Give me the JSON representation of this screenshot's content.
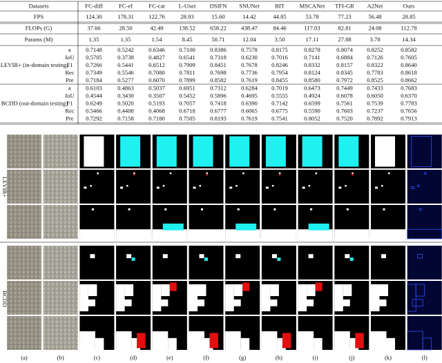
{
  "table": {
    "header": [
      "Datasets",
      "FC-diff",
      "FC-ef",
      "FC-cat",
      "L-Unet",
      "DSIFN",
      "SNUNet",
      "BIT",
      "MSCANet",
      "TFI-GR",
      "A2Net",
      "Ours"
    ],
    "rows": [
      {
        "label": "FPS",
        "values": [
          "124.30",
          "178.31",
          "122.76",
          "28.93",
          "15.60",
          "14.42",
          "44.85",
          "53.78",
          "77.23",
          "56.48",
          "28.85"
        ]
      },
      {
        "label": "FLOPs (G)",
        "values": [
          "37.66",
          "28.50",
          "42.49",
          "138.52",
          "658.22",
          "438.47",
          "84.46",
          "117.03",
          "82.81",
          "24.08",
          "112.78"
        ]
      },
      {
        "label": "Params (M)",
        "values": [
          "1.35",
          "1.35",
          "1.54",
          "8.45",
          "50.71",
          "12.04",
          "3.50",
          "17.11",
          "27.88",
          "3.78",
          "14.34"
        ]
      }
    ],
    "groups": [
      {
        "label": "LEVIR+ (in-domain testing)",
        "rows": [
          {
            "metric": "κ",
            "values": [
              "0.7148",
              "0.5242",
              "0.6346",
              "0.7100",
              "0.8386",
              "0.7578",
              "0.8175",
              "0.8278",
              "0.8074",
              "0.8252",
              "0.8582"
            ],
            "best": 10,
            "second": 4
          },
          {
            "metric": "IoU",
            "values": [
              "0.5705",
              "0.3738",
              "0.4827",
              "0.6541",
              "0.7318",
              "0.6230",
              "0.7016",
              "0.7141",
              "0.6884",
              "0.7126",
              "0.7605"
            ],
            "best": 10,
            "second": 4
          },
          {
            "metric": "F1",
            "values": [
              "0.7266",
              "0.5441",
              "0.6512",
              "0.7909",
              "0.8451",
              "0.7678",
              "0.8246",
              "0.8332",
              "0.8157",
              "0.8322",
              "0.8640"
            ],
            "best": 10,
            "second": 4
          },
          {
            "metric": "Rec",
            "values": [
              "0.7349",
              "0.5546",
              "0.7080",
              "0.7811",
              "0.7698",
              "0.7736",
              "0.7954",
              "0.8124",
              "0.8345",
              "0.7783",
              "0.8618"
            ],
            "best": 10,
            "second": 8
          },
          {
            "metric": "Pre",
            "values": [
              "0.7184",
              "0.5277",
              "0.6070",
              "0.7899",
              "0.8582",
              "0.7619",
              "0.8455",
              "0.8580",
              "0.7972",
              "0.8525",
              "0.8662"
            ],
            "best": 10,
            "second": 4
          }
        ]
      },
      {
        "label": "BCDD (out-domain testing)",
        "rows": [
          {
            "metric": "κ",
            "values": [
              "0.6103",
              "0.4863",
              "0.5037",
              "0.6951",
              "0.7312",
              "0.6284",
              "0.7019",
              "0.6473",
              "0.7449",
              "0.7433",
              "0.7683"
            ],
            "best": 10,
            "second": 8
          },
          {
            "metric": "IoU",
            "values": [
              "0.4544",
              "0.3430",
              "0.3507",
              "0.5452",
              "0.5896",
              "0.4695",
              "0.5555",
              "0.4924",
              "0.6078",
              "0.6050",
              "0.6370"
            ],
            "best": 10,
            "second": 8
          },
          {
            "metric": "F1",
            "values": [
              "0.6249",
              "0.5020",
              "0.5193",
              "0.7057",
              "0.7418",
              "0.6390",
              "0.7142",
              "0.6599",
              "0.7561",
              "0.7539",
              "0.7783"
            ],
            "best": 10,
            "second": 8
          },
          {
            "metric": "Rec",
            "values": [
              "0.5466",
              "0.4408",
              "0.4068",
              "0.6718",
              "0.6777",
              "0.6065",
              "0.6775",
              "0.5590",
              "0.7603",
              "0.7237",
              "0.7656"
            ],
            "best": 10,
            "second": 8
          },
          {
            "metric": "Pre",
            "values": [
              "0.7292",
              "0.7158",
              "0.7180",
              "0.7505",
              "0.8193",
              "0.7619",
              "0.7541",
              "0.8052",
              "0.7520",
              "0.7892",
              "0.7913"
            ],
            "best": 4,
            "second": 7
          }
        ]
      }
    ],
    "colors": {
      "best": "#e8221c",
      "second": "#1ea5e6"
    }
  },
  "figure": {
    "row_groups": [
      "LEVIR+",
      "BCDD"
    ],
    "column_labels": [
      "(a)",
      "(b)",
      "(c)",
      "(d)",
      "(e)",
      "(f)",
      "(g)",
      "(h)",
      "(i)",
      "(j)",
      "(k)",
      "(l)"
    ]
  }
}
